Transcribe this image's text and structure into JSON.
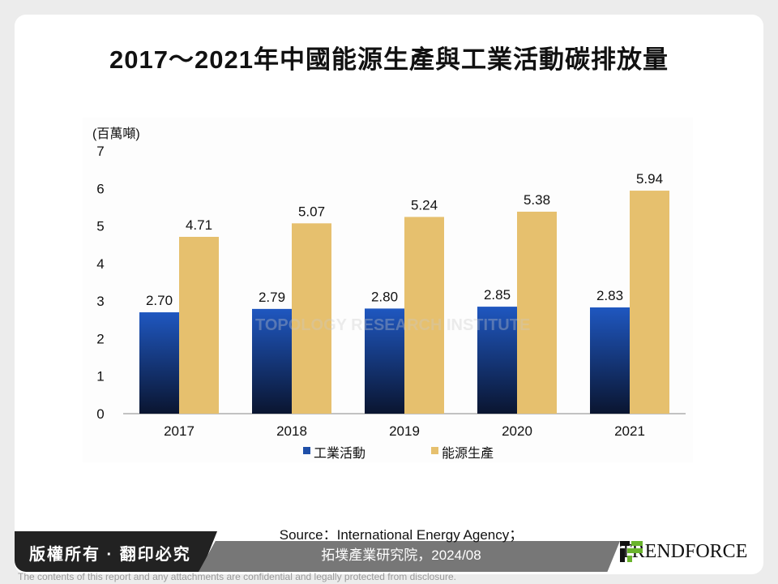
{
  "title": "2017～2021年中國能源生產與工業活動碳排放量",
  "chart_data": {
    "type": "bar",
    "title": "2017～2021年中國能源生產與工業活動碳排放量",
    "ylabel": "(百萬噸)",
    "categories": [
      "2017",
      "2018",
      "2019",
      "2020",
      "2021"
    ],
    "ylim": [
      0,
      7
    ],
    "yticks": [
      "0",
      "1",
      "2",
      "3",
      "4",
      "5",
      "6",
      "7"
    ],
    "series": [
      {
        "name": "工業活動",
        "color": "#1f4fa8",
        "values": [
          2.7,
          2.79,
          2.8,
          2.85,
          2.83
        ],
        "labels": [
          "2.70",
          "2.79",
          "2.80",
          "2.85",
          "2.83"
        ]
      },
      {
        "name": "能源生產",
        "color": "#e6c06e",
        "values": [
          4.71,
          5.07,
          5.24,
          5.38,
          5.94
        ],
        "labels": [
          "4.71",
          "5.07",
          "5.24",
          "5.38",
          "5.94"
        ]
      }
    ],
    "legend": "bottom"
  },
  "watermark": "TOPOLOGY RESEARCH INSTITUTE",
  "footer": {
    "copyright": "版權所有 · 翻印必究",
    "source1": "Source：International Energy Agency；",
    "source2": "拓墣產業研究院，2024/08",
    "logo": "TRENDFORCE",
    "disclaimer": "The contents of this report and any attachments are confidential and legally protected from disclosure."
  }
}
